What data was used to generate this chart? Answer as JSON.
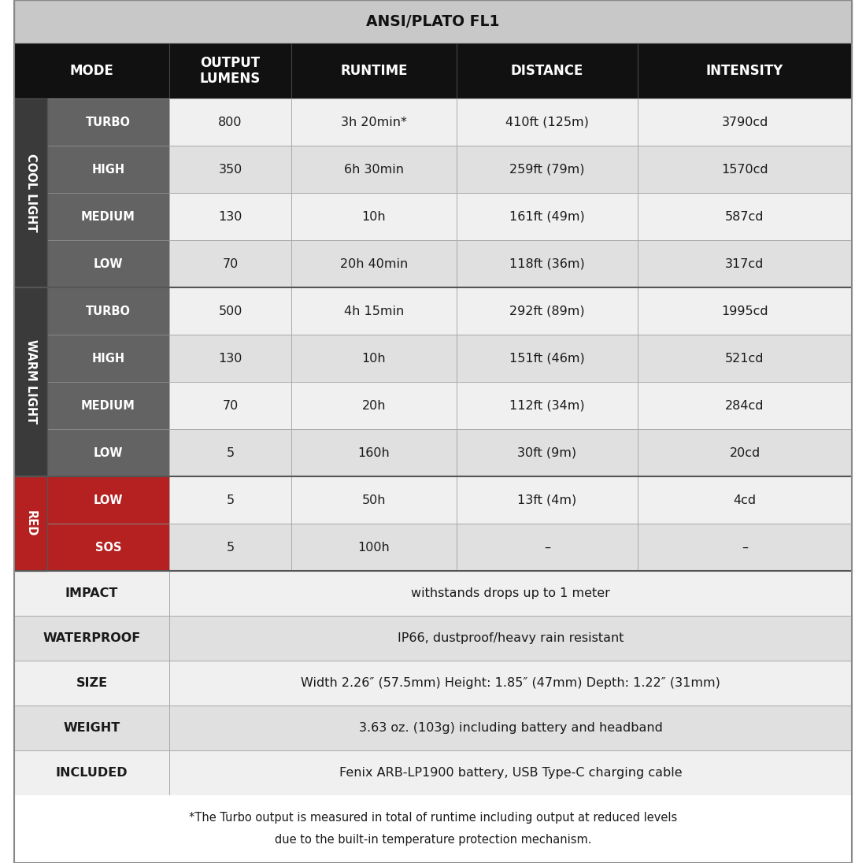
{
  "title": "ANSI/PLATO FL1",
  "title_bg": "#c8c8c8",
  "header_bg": "#111111",
  "header_text_color": "#ffffff",
  "header_cols": [
    "MODE",
    "OUTPUT\nLUMENS",
    "RUNTIME",
    "DISTANCE",
    "INTENSITY"
  ],
  "group_cool_label": "COOL LIGHT",
  "group_warm_label": "WARM LIGHT",
  "group_red_label": "RED",
  "group_cool_bg": "#3a3a3a",
  "group_warm_bg": "#3a3a3a",
  "group_red_bg": "#b52020",
  "submode_cool_bg": "#636363",
  "submode_warm_bg": "#636363",
  "submode_red_bg": "#b52020",
  "data_bg_white": "#ffffff",
  "data_bg_gray": "#e8e8e8",
  "data_text_color": "#1a1a1a",
  "border_color": "#aaaaaa",
  "spec_label_bg": "#ffffff",
  "cool_rows": [
    [
      "TURBO",
      "800",
      "3h 20min*",
      "410ft (125m)",
      "3790cd"
    ],
    [
      "HIGH",
      "350",
      "6h 30min",
      "259ft (79m)",
      "1570cd"
    ],
    [
      "MEDIUM",
      "130",
      "10h",
      "161ft (49m)",
      "587cd"
    ],
    [
      "LOW",
      "70",
      "20h 40min",
      "118ft (36m)",
      "317cd"
    ]
  ],
  "warm_rows": [
    [
      "TURBO",
      "500",
      "4h 15min",
      "292ft (89m)",
      "1995cd"
    ],
    [
      "HIGH",
      "130",
      "10h",
      "151ft (46m)",
      "521cd"
    ],
    [
      "MEDIUM",
      "70",
      "20h",
      "112ft (34m)",
      "284cd"
    ],
    [
      "LOW",
      "5",
      "160h",
      "30ft (9m)",
      "20cd"
    ]
  ],
  "red_rows": [
    [
      "LOW",
      "5",
      "50h",
      "13ft (4m)",
      "4cd"
    ],
    [
      "SOS",
      "5",
      "100h",
      "–",
      "–"
    ]
  ],
  "spec_rows": [
    [
      "IMPACT",
      "withstands drops up to 1 meter"
    ],
    [
      "WATERPROOF",
      "IP66, dustproof/heavy rain resistant"
    ],
    [
      "SIZE",
      "Width 2.26″ (57.5mm) Height: 1.85″ (47mm) Depth: 1.22″ (31mm)"
    ],
    [
      "WEIGHT",
      "3.63 oz. (103g) including battery and headband"
    ],
    [
      "INCLUDED",
      "Fenix ARB-LP1900 battery, USB Type-C charging cable"
    ]
  ],
  "footnote_line1": "*The Turbo output is measured in total of runtime including output at reduced levels",
  "footnote_line2": "due to the built-in temperature protection mechanism."
}
